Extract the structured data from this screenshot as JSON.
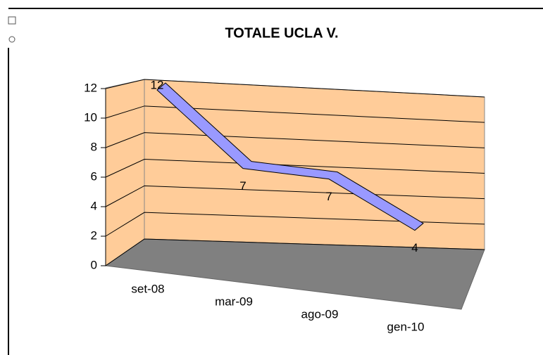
{
  "chart_data": {
    "type": "line",
    "title": "TOTALE UCLA V.",
    "categories": [
      "set-08",
      "mar-09",
      "ago-09",
      "gen-10"
    ],
    "values": [
      12,
      7,
      7,
      4
    ],
    "color": "#9999ff",
    "ylim": [
      0,
      12
    ],
    "yticks": [
      0,
      2,
      4,
      6,
      8,
      10,
      12
    ],
    "grid": true
  }
}
